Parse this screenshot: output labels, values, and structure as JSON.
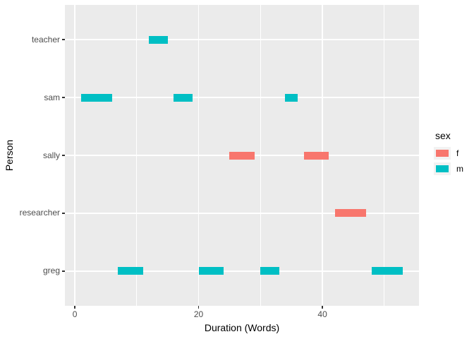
{
  "chart_data": {
    "type": "bar",
    "subtype": "horizontal-timeline-segments",
    "title": "",
    "xlabel": "Duration (Words)",
    "ylabel": "Person",
    "x_ticks": [
      0,
      20,
      40
    ],
    "x_minor_ticks": [
      10,
      30,
      50
    ],
    "xlim": [
      -1.6,
      55.6
    ],
    "y_categories_bottom_to_top": [
      "greg",
      "researcher",
      "sally",
      "sam",
      "teacher"
    ],
    "ylim": [
      0.4,
      5.6
    ],
    "grid": "on",
    "legend_position": "right",
    "segments": [
      {
        "person": "sam",
        "sex": "m",
        "start": 1,
        "end": 6
      },
      {
        "person": "greg",
        "sex": "m",
        "start": 7,
        "end": 11
      },
      {
        "person": "teacher",
        "sex": "m",
        "start": 12,
        "end": 15
      },
      {
        "person": "sam",
        "sex": "m",
        "start": 16,
        "end": 19
      },
      {
        "person": "greg",
        "sex": "m",
        "start": 20,
        "end": 24
      },
      {
        "person": "sally",
        "sex": "f",
        "start": 25,
        "end": 29
      },
      {
        "person": "greg",
        "sex": "m",
        "start": 30,
        "end": 33
      },
      {
        "person": "sam",
        "sex": "m",
        "start": 34,
        "end": 36
      },
      {
        "person": "sally",
        "sex": "f",
        "start": 37,
        "end": 41
      },
      {
        "person": "researcher",
        "sex": "f",
        "start": 42,
        "end": 47
      },
      {
        "person": "greg",
        "sex": "m",
        "start": 48,
        "end": 53
      }
    ],
    "legend": {
      "title": "sex",
      "entries": [
        {
          "label": "f",
          "color": "#F8766D"
        },
        {
          "label": "m",
          "color": "#00BFC4"
        }
      ]
    },
    "colors": {
      "f": "#F8766D",
      "m": "#00BFC4",
      "panel_background": "#EBEBEB",
      "grid": "#FFFFFF",
      "axis_text": "#4D4D4D",
      "axis_title": "#000000",
      "tick_mark": "#333333",
      "legend_key_background": "#F2F2F2"
    }
  }
}
